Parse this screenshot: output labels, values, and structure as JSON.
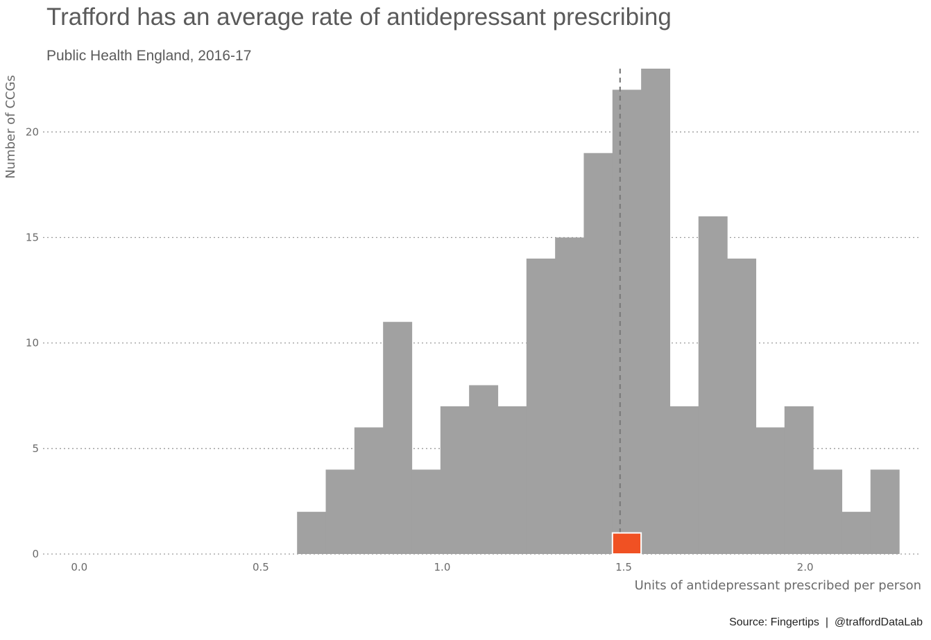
{
  "chart_data": {
    "type": "bar",
    "title": "Trafford has an average rate of antidepressant prescribing",
    "subtitle": "Public Health England, 2016-17",
    "xlabel": "Units of antidepressant prescribed per person",
    "ylabel": "Number of CCGs",
    "caption": "Source: Fingertips  |  @traffordDataLab",
    "xlim": [
      -0.1,
      2.32
    ],
    "ylim": [
      0,
      23
    ],
    "x_ticks": [
      {
        "value": 0.0,
        "label": "0.0"
      },
      {
        "value": 0.5,
        "label": "0.5"
      },
      {
        "value": 1.0,
        "label": "1.0"
      },
      {
        "value": 1.5,
        "label": "1.5"
      },
      {
        "value": 2.0,
        "label": "2.0"
      }
    ],
    "y_ticks": [
      {
        "value": 0,
        "label": "0"
      },
      {
        "value": 5,
        "label": "5"
      },
      {
        "value": 10,
        "label": "10"
      },
      {
        "value": 15,
        "label": "15"
      },
      {
        "value": 20,
        "label": "20"
      }
    ],
    "grid": {
      "major_y": true,
      "style": "dotted"
    },
    "bin_width": 0.079,
    "bins": [
      {
        "start": 0.6,
        "count": 2
      },
      {
        "start": 0.679,
        "count": 4
      },
      {
        "start": 0.758,
        "count": 6
      },
      {
        "start": 0.837,
        "count": 11
      },
      {
        "start": 0.916,
        "count": 4
      },
      {
        "start": 0.995,
        "count": 7
      },
      {
        "start": 1.074,
        "count": 8
      },
      {
        "start": 1.153,
        "count": 7
      },
      {
        "start": 1.232,
        "count": 14
      },
      {
        "start": 1.311,
        "count": 15
      },
      {
        "start": 1.39,
        "count": 19
      },
      {
        "start": 1.469,
        "count": 22
      },
      {
        "start": 1.548,
        "count": 23
      },
      {
        "start": 1.627,
        "count": 7
      },
      {
        "start": 1.706,
        "count": 16
      },
      {
        "start": 1.785,
        "count": 14
      },
      {
        "start": 1.864,
        "count": 6
      },
      {
        "start": 1.943,
        "count": 7
      },
      {
        "start": 2.022,
        "count": 4
      },
      {
        "start": 2.101,
        "count": 2
      },
      {
        "start": 2.18,
        "count": 4
      }
    ],
    "highlight": {
      "start": 1.469,
      "count": 1,
      "color": "#f05123"
    },
    "reference_line": {
      "x": 1.49,
      "style": "dashed"
    },
    "colors": {
      "bars": "#a1a1a1",
      "highlight": "#f05123",
      "text": "#5a5a5a"
    }
  }
}
